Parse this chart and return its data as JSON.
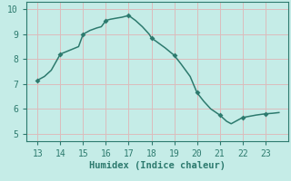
{
  "x": [
    13,
    13.3,
    13.6,
    14,
    14.4,
    14.8,
    15,
    15.3,
    15.6,
    15.8,
    16,
    16.2,
    16.5,
    16.7,
    17,
    17.3,
    17.6,
    17.9,
    18,
    18.3,
    18.6,
    19,
    19.3,
    19.7,
    20,
    20.3,
    20.6,
    21,
    21.3,
    21.5,
    22,
    22.3,
    22.6,
    23,
    23.3,
    23.6
  ],
  "y": [
    7.15,
    7.3,
    7.55,
    8.2,
    8.35,
    8.5,
    9.0,
    9.15,
    9.25,
    9.3,
    9.55,
    9.6,
    9.65,
    9.68,
    9.75,
    9.55,
    9.3,
    9.0,
    8.85,
    8.65,
    8.45,
    8.15,
    7.8,
    7.3,
    6.65,
    6.3,
    6.0,
    5.75,
    5.5,
    5.4,
    5.65,
    5.7,
    5.75,
    5.8,
    5.82,
    5.85
  ],
  "markers_x": [
    13,
    14,
    15,
    16,
    17,
    18,
    19,
    20,
    21,
    22,
    23
  ],
  "markers_y": [
    7.15,
    8.2,
    9.0,
    9.55,
    9.75,
    8.85,
    8.15,
    6.65,
    5.75,
    5.65,
    5.8
  ],
  "line_color": "#2d7a6e",
  "marker_color": "#2d7a6e",
  "bg_color": "#c5ece7",
  "grid_color": "#dbbcbc",
  "xlabel": "Humidex (Indice chaleur)",
  "xlim": [
    12.5,
    24.0
  ],
  "ylim": [
    4.7,
    10.3
  ],
  "xticks": [
    13,
    14,
    15,
    16,
    17,
    18,
    19,
    20,
    21,
    22,
    23
  ],
  "yticks": [
    5,
    6,
    7,
    8,
    9,
    10
  ],
  "xlabel_fontsize": 7.5,
  "tick_fontsize": 7,
  "line_width": 1.1,
  "marker_size": 3.0
}
